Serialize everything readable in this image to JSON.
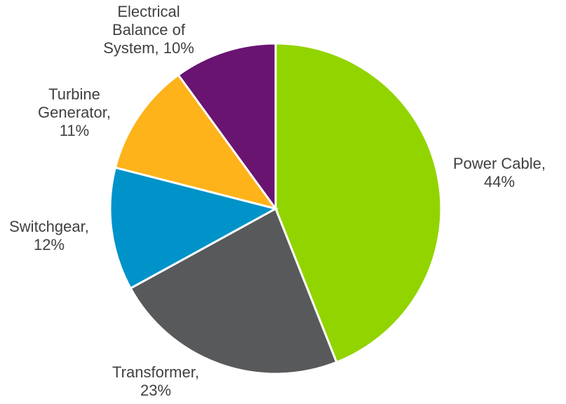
{
  "chart_data": {
    "type": "pie",
    "title": "",
    "colors": {
      "Power Cable": "#92d400",
      "Transformer": "#58595b",
      "Switchgear": "#0093c9",
      "Turbine Generator": "#fdb319",
      "Electrical Balance of System": "#691471"
    },
    "slices": [
      {
        "label": "Power Cable",
        "value": 44,
        "display": "Power Cable, 44%"
      },
      {
        "label": "Transformer",
        "value": 23,
        "display": "Transformer, 23%"
      },
      {
        "label": "Switchgear",
        "value": 12,
        "display": "Switchgear, 12%"
      },
      {
        "label": "Turbine Generator",
        "value": 11,
        "display": "Turbine Generator, 11%"
      },
      {
        "label": "Electrical Balance of System",
        "value": 10,
        "display": "Electrical Balance of System, 10%"
      }
    ]
  }
}
